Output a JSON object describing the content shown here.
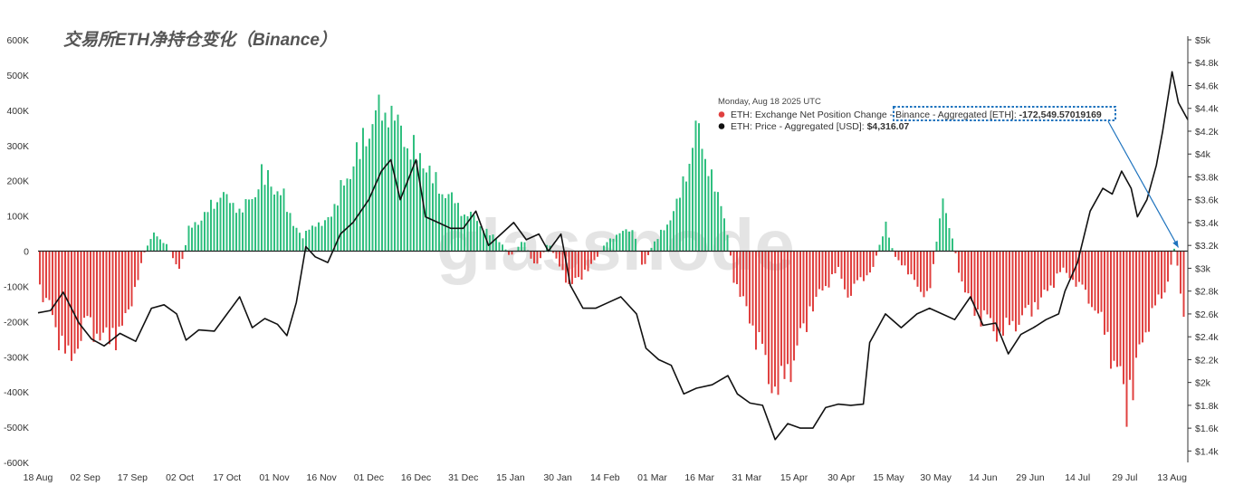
{
  "chart_data": {
    "type": "bar+line",
    "title": "交易所ETH净持仓变化（Binance）",
    "watermark": "glassnode",
    "x_ticks": [
      "18 Aug",
      "02 Sep",
      "17 Sep",
      "02 Oct",
      "17 Oct",
      "01 Nov",
      "16 Nov",
      "01 Dec",
      "16 Dec",
      "31 Dec",
      "15 Jan",
      "30 Jan",
      "14 Feb",
      "01 Mar",
      "16 Mar",
      "31 Mar",
      "15 Apr",
      "30 Apr",
      "15 May",
      "30 May",
      "14 Jun",
      "29 Jun",
      "14 Jul",
      "29 Jul",
      "13 Aug"
    ],
    "y_left_ticks": [
      "600K",
      "500K",
      "400K",
      "300K",
      "200K",
      "100K",
      "0",
      "-100K",
      "-200K",
      "-300K",
      "-400K",
      "-500K",
      "-600K"
    ],
    "y_left_range": [
      -600000,
      600000
    ],
    "y_right_ticks": [
      "$5k",
      "$4.8k",
      "$4.6k",
      "$4.4k",
      "$4.2k",
      "$4k",
      "$3.8k",
      "$3.6k",
      "$3.4k",
      "$3.2k",
      "$3k",
      "$2.8k",
      "$2.6k",
      "$2.4k",
      "$2.2k",
      "$2k",
      "$1.8k",
      "$1.6k",
      "$1.4k"
    ],
    "y_right_range": [
      1300,
      5000
    ],
    "colors": {
      "positive": "#2fbf7f",
      "negative": "#e0403f",
      "price": "#111111"
    },
    "series": [
      {
        "name": "ETH: Exchange Net Position Change - Binance - Aggregated [ETH]",
        "kind": "bar",
        "points": [
          [
            "2024-08-18",
            -120000
          ],
          [
            "2024-08-22",
            -200000
          ],
          [
            "2024-08-25",
            -300000
          ],
          [
            "2024-08-28",
            -380000
          ],
          [
            "2024-09-02",
            -240000
          ],
          [
            "2024-09-06",
            -280000
          ],
          [
            "2024-09-10",
            -300000
          ],
          [
            "2024-09-14",
            -260000
          ],
          [
            "2024-09-18",
            -120000
          ],
          [
            "2024-09-21",
            5000
          ],
          [
            "2024-09-24",
            60000
          ],
          [
            "2024-09-28",
            20000
          ],
          [
            "2024-10-02",
            -70000
          ],
          [
            "2024-10-05",
            80000
          ],
          [
            "2024-10-08",
            100000
          ],
          [
            "2024-10-12",
            150000
          ],
          [
            "2024-10-15",
            200000
          ],
          [
            "2024-10-18",
            160000
          ],
          [
            "2024-10-22",
            140000
          ],
          [
            "2024-10-25",
            180000
          ],
          [
            "2024-10-28",
            260000
          ],
          [
            "2024-11-01",
            220000
          ],
          [
            "2024-11-04",
            180000
          ],
          [
            "2024-11-07",
            100000
          ],
          [
            "2024-11-10",
            40000
          ],
          [
            "2024-11-13",
            100000
          ],
          [
            "2024-11-16",
            80000
          ],
          [
            "2024-11-20",
            150000
          ],
          [
            "2024-11-24",
            250000
          ],
          [
            "2024-11-28",
            340000
          ],
          [
            "2024-12-01",
            420000
          ],
          [
            "2024-12-04",
            460000
          ],
          [
            "2024-12-07",
            490000
          ],
          [
            "2024-12-10",
            420000
          ],
          [
            "2024-12-13",
            380000
          ],
          [
            "2024-12-16",
            320000
          ],
          [
            "2024-12-19",
            300000
          ],
          [
            "2024-12-22",
            230000
          ],
          [
            "2024-12-25",
            200000
          ],
          [
            "2024-12-28",
            170000
          ],
          [
            "2024-12-31",
            130000
          ],
          [
            "2025-01-04",
            110000
          ],
          [
            "2025-01-08",
            60000
          ],
          [
            "2025-01-12",
            30000
          ],
          [
            "2025-01-15",
            -20000
          ],
          [
            "2025-01-19",
            40000
          ],
          [
            "2025-01-23",
            -60000
          ],
          [
            "2025-01-27",
            30000
          ],
          [
            "2025-01-30",
            -40000
          ],
          [
            "2025-02-03",
            -120000
          ],
          [
            "2025-02-07",
            -80000
          ],
          [
            "2025-02-11",
            -30000
          ],
          [
            "2025-02-15",
            40000
          ],
          [
            "2025-02-19",
            60000
          ],
          [
            "2025-02-23",
            80000
          ],
          [
            "2025-02-26",
            -60000
          ],
          [
            "2025-03-01",
            20000
          ],
          [
            "2025-03-05",
            80000
          ],
          [
            "2025-03-09",
            160000
          ],
          [
            "2025-03-12",
            280000
          ],
          [
            "2025-03-15",
            410000
          ],
          [
            "2025-03-18",
            330000
          ],
          [
            "2025-03-21",
            200000
          ],
          [
            "2025-03-24",
            120000
          ],
          [
            "2025-03-27",
            -100000
          ],
          [
            "2025-03-31",
            -200000
          ],
          [
            "2025-04-04",
            -320000
          ],
          [
            "2025-04-07",
            -420000
          ],
          [
            "2025-04-10",
            -470000
          ],
          [
            "2025-04-13",
            -410000
          ],
          [
            "2025-04-17",
            -300000
          ],
          [
            "2025-04-21",
            -180000
          ],
          [
            "2025-04-25",
            -120000
          ],
          [
            "2025-04-29",
            -60000
          ],
          [
            "2025-05-02",
            -150000
          ],
          [
            "2025-05-06",
            -100000
          ],
          [
            "2025-05-10",
            -60000
          ],
          [
            "2025-05-14",
            90000
          ],
          [
            "2025-05-17",
            -20000
          ],
          [
            "2025-05-20",
            -50000
          ],
          [
            "2025-05-24",
            -120000
          ],
          [
            "2025-05-28",
            -150000
          ],
          [
            "2025-06-01",
            170000
          ],
          [
            "2025-06-04",
            60000
          ],
          [
            "2025-06-07",
            -100000
          ],
          [
            "2025-06-11",
            -200000
          ],
          [
            "2025-06-15",
            -230000
          ],
          [
            "2025-06-19",
            -280000
          ],
          [
            "2025-06-23",
            -250000
          ],
          [
            "2025-06-27",
            -220000
          ],
          [
            "2025-07-01",
            -180000
          ],
          [
            "2025-07-05",
            -130000
          ],
          [
            "2025-07-09",
            -60000
          ],
          [
            "2025-07-13",
            -100000
          ],
          [
            "2025-07-17",
            -150000
          ],
          [
            "2025-07-21",
            -220000
          ],
          [
            "2025-07-24",
            -320000
          ],
          [
            "2025-07-27",
            -420000
          ],
          [
            "2025-07-30",
            -530000
          ],
          [
            "2025-08-02",
            -380000
          ],
          [
            "2025-08-05",
            -250000
          ],
          [
            "2025-08-08",
            -180000
          ],
          [
            "2025-08-11",
            -130000
          ],
          [
            "2025-08-14",
            25000
          ],
          [
            "2025-08-16",
            -200000
          ],
          [
            "2025-08-18",
            -172550
          ]
        ]
      },
      {
        "name": "ETH: Price - Aggregated [USD]",
        "kind": "line",
        "points": [
          [
            "2024-08-18",
            2610
          ],
          [
            "2024-08-22",
            2630
          ],
          [
            "2024-08-26",
            2790
          ],
          [
            "2024-08-31",
            2520
          ],
          [
            "2024-09-04",
            2380
          ],
          [
            "2024-09-08",
            2320
          ],
          [
            "2024-09-13",
            2430
          ],
          [
            "2024-09-18",
            2360
          ],
          [
            "2024-09-23",
            2650
          ],
          [
            "2024-09-27",
            2680
          ],
          [
            "2024-10-01",
            2600
          ],
          [
            "2024-10-04",
            2370
          ],
          [
            "2024-10-08",
            2460
          ],
          [
            "2024-10-13",
            2450
          ],
          [
            "2024-10-17",
            2600
          ],
          [
            "2024-10-21",
            2750
          ],
          [
            "2024-10-25",
            2480
          ],
          [
            "2024-10-29",
            2560
          ],
          [
            "2024-11-02",
            2510
          ],
          [
            "2024-11-05",
            2410
          ],
          [
            "2024-11-08",
            2700
          ],
          [
            "2024-11-11",
            3190
          ],
          [
            "2024-11-14",
            3100
          ],
          [
            "2024-11-18",
            3050
          ],
          [
            "2024-11-22",
            3300
          ],
          [
            "2024-11-26",
            3400
          ],
          [
            "2024-12-01",
            3600
          ],
          [
            "2024-12-05",
            3850
          ],
          [
            "2024-12-08",
            3950
          ],
          [
            "2024-12-11",
            3600
          ],
          [
            "2024-12-16",
            3950
          ],
          [
            "2024-12-19",
            3450
          ],
          [
            "2024-12-23",
            3400
          ],
          [
            "2024-12-27",
            3350
          ],
          [
            "2024-12-31",
            3350
          ],
          [
            "2025-01-04",
            3500
          ],
          [
            "2025-01-08",
            3200
          ],
          [
            "2025-01-12",
            3300
          ],
          [
            "2025-01-16",
            3400
          ],
          [
            "2025-01-20",
            3250
          ],
          [
            "2025-01-24",
            3300
          ],
          [
            "2025-01-27",
            3150
          ],
          [
            "2025-01-31",
            3300
          ],
          [
            "2025-02-03",
            2850
          ],
          [
            "2025-02-07",
            2650
          ],
          [
            "2025-02-11",
            2650
          ],
          [
            "2025-02-15",
            2700
          ],
          [
            "2025-02-19",
            2750
          ],
          [
            "2025-02-24",
            2600
          ],
          [
            "2025-02-27",
            2300
          ],
          [
            "2025-03-03",
            2200
          ],
          [
            "2025-03-07",
            2150
          ],
          [
            "2025-03-11",
            1900
          ],
          [
            "2025-03-15",
            1950
          ],
          [
            "2025-03-20",
            1980
          ],
          [
            "2025-03-25",
            2060
          ],
          [
            "2025-03-28",
            1900
          ],
          [
            "2025-04-01",
            1820
          ],
          [
            "2025-04-05",
            1800
          ],
          [
            "2025-04-09",
            1500
          ],
          [
            "2025-04-13",
            1640
          ],
          [
            "2025-04-17",
            1600
          ],
          [
            "2025-04-21",
            1600
          ],
          [
            "2025-04-25",
            1780
          ],
          [
            "2025-04-29",
            1810
          ],
          [
            "2025-05-03",
            1800
          ],
          [
            "2025-05-07",
            1810
          ],
          [
            "2025-05-09",
            2350
          ],
          [
            "2025-05-14",
            2600
          ],
          [
            "2025-05-19",
            2480
          ],
          [
            "2025-05-24",
            2600
          ],
          [
            "2025-05-28",
            2650
          ],
          [
            "2025-06-01",
            2600
          ],
          [
            "2025-06-05",
            2550
          ],
          [
            "2025-06-10",
            2750
          ],
          [
            "2025-06-14",
            2500
          ],
          [
            "2025-06-18",
            2520
          ],
          [
            "2025-06-22",
            2250
          ],
          [
            "2025-06-26",
            2420
          ],
          [
            "2025-06-30",
            2480
          ],
          [
            "2025-07-04",
            2550
          ],
          [
            "2025-07-08",
            2600
          ],
          [
            "2025-07-10",
            2800
          ],
          [
            "2025-07-14",
            3050
          ],
          [
            "2025-07-18",
            3500
          ],
          [
            "2025-07-22",
            3700
          ],
          [
            "2025-07-25",
            3650
          ],
          [
            "2025-07-28",
            3850
          ],
          [
            "2025-07-31",
            3700
          ],
          [
            "2025-08-02",
            3450
          ],
          [
            "2025-08-05",
            3600
          ],
          [
            "2025-08-08",
            3900
          ],
          [
            "2025-08-10",
            4200
          ],
          [
            "2025-08-13",
            4720
          ],
          [
            "2025-08-15",
            4450
          ],
          [
            "2025-08-18",
            4300
          ]
        ]
      }
    ],
    "tooltip": {
      "date": "Monday, Aug 18 2025 UTC",
      "rows": [
        {
          "label": "ETH: Exchange Net Position Change - Binance - Aggregated [ETH]: ",
          "value": "-172,549.57019169",
          "color": "#e0403f"
        },
        {
          "label": "ETH: Price - Aggregated [USD]: ",
          "value": "$4,316.07",
          "color": "#111111"
        }
      ],
      "highlight_color": "#1e73be"
    },
    "grid": false,
    "legend": "tooltip-top-center"
  }
}
